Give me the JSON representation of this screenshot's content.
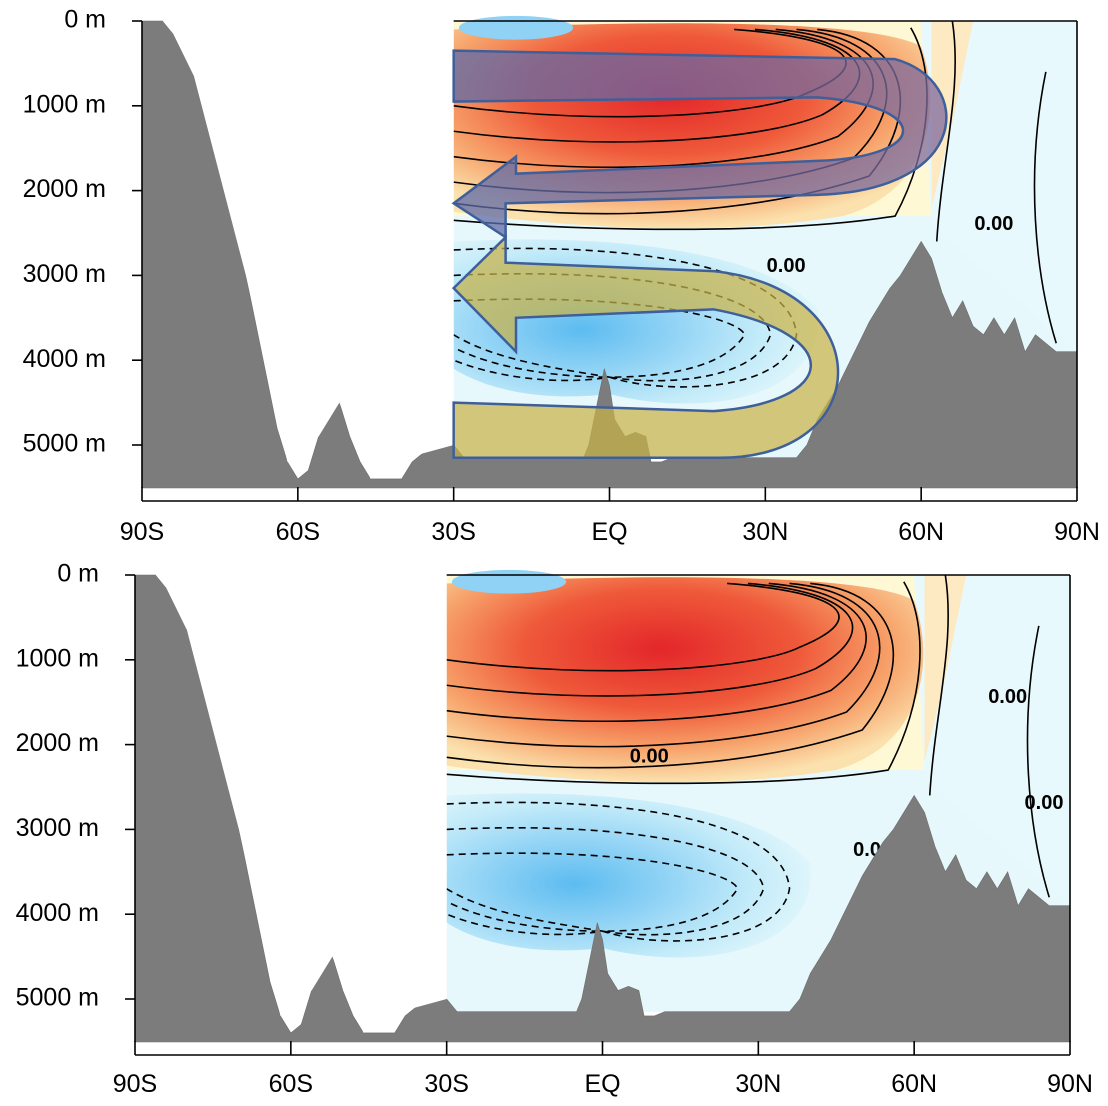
{
  "chart_data": [
    {
      "type": "heatmap",
      "panel": "top",
      "title": "",
      "xlabel": "",
      "ylabel": "",
      "x_ticks": [
        "90S",
        "60S",
        "30S",
        "EQ",
        "30N",
        "60N",
        "90N"
      ],
      "y_ticks": [
        "0 m",
        "1000 m",
        "2000 m",
        "3000 m",
        "4000 m",
        "5000 m"
      ],
      "xlim": [
        -90,
        90
      ],
      "ylim_m": [
        5500,
        0
      ],
      "data_region_lat": [
        -30,
        90
      ],
      "contour_labels": [
        {
          "text": "0.00",
          "lat": 34,
          "depth_m": 2900
        },
        {
          "text": "0.00",
          "lat": 74,
          "depth_m": 2400
        }
      ],
      "annotations": [
        {
          "name": "upper-cell-arrow",
          "description_color": "#4a5c9e",
          "path_lat_depth": "from 30S at ~800 m northward to ~63N, return southward at ~2100 m to 30S"
        },
        {
          "name": "lower-cell-arrow",
          "description_color": "#c9b347",
          "path_lat_depth": "from 30S at ~5000 m northward to ~45N, return southward at ~3400 m to 30S"
        }
      ],
      "colors": {
        "positive_max": "#e52b2b",
        "positive_low": "#f8d9a0",
        "zero": "#fff8d2",
        "negative_low": "#ddf5fb",
        "negative_max": "#5bbcf0",
        "bathymetry": "#7c7c7c"
      }
    },
    {
      "type": "heatmap",
      "panel": "bottom",
      "title": "",
      "xlabel": "",
      "ylabel": "",
      "x_ticks": [
        "90S",
        "60S",
        "30S",
        "EQ",
        "30N",
        "60N",
        "90N"
      ],
      "y_ticks": [
        "0 m",
        "1000 m",
        "2000 m",
        "3000 m",
        "4000 m",
        "5000 m"
      ],
      "xlim": [
        -90,
        90
      ],
      "ylim_m": [
        5500,
        0
      ],
      "data_region_lat": [
        -30,
        90
      ],
      "contour_labels": [
        {
          "text": "0.00",
          "lat": 9,
          "depth_m": 2150
        },
        {
          "text": "0.00",
          "lat": 78,
          "depth_m": 1450
        },
        {
          "text": "0.00",
          "lat": 52,
          "depth_m": 3250
        },
        {
          "text": "0.00",
          "lat": 85,
          "depth_m": 2700
        }
      ],
      "colors": {
        "positive_max": "#e52b2b",
        "positive_low": "#f8d9a0",
        "zero": "#fff8d2",
        "negative_low": "#ddf5fb",
        "negative_max": "#5bbcf0",
        "bathymetry": "#7c7c7c"
      }
    }
  ]
}
